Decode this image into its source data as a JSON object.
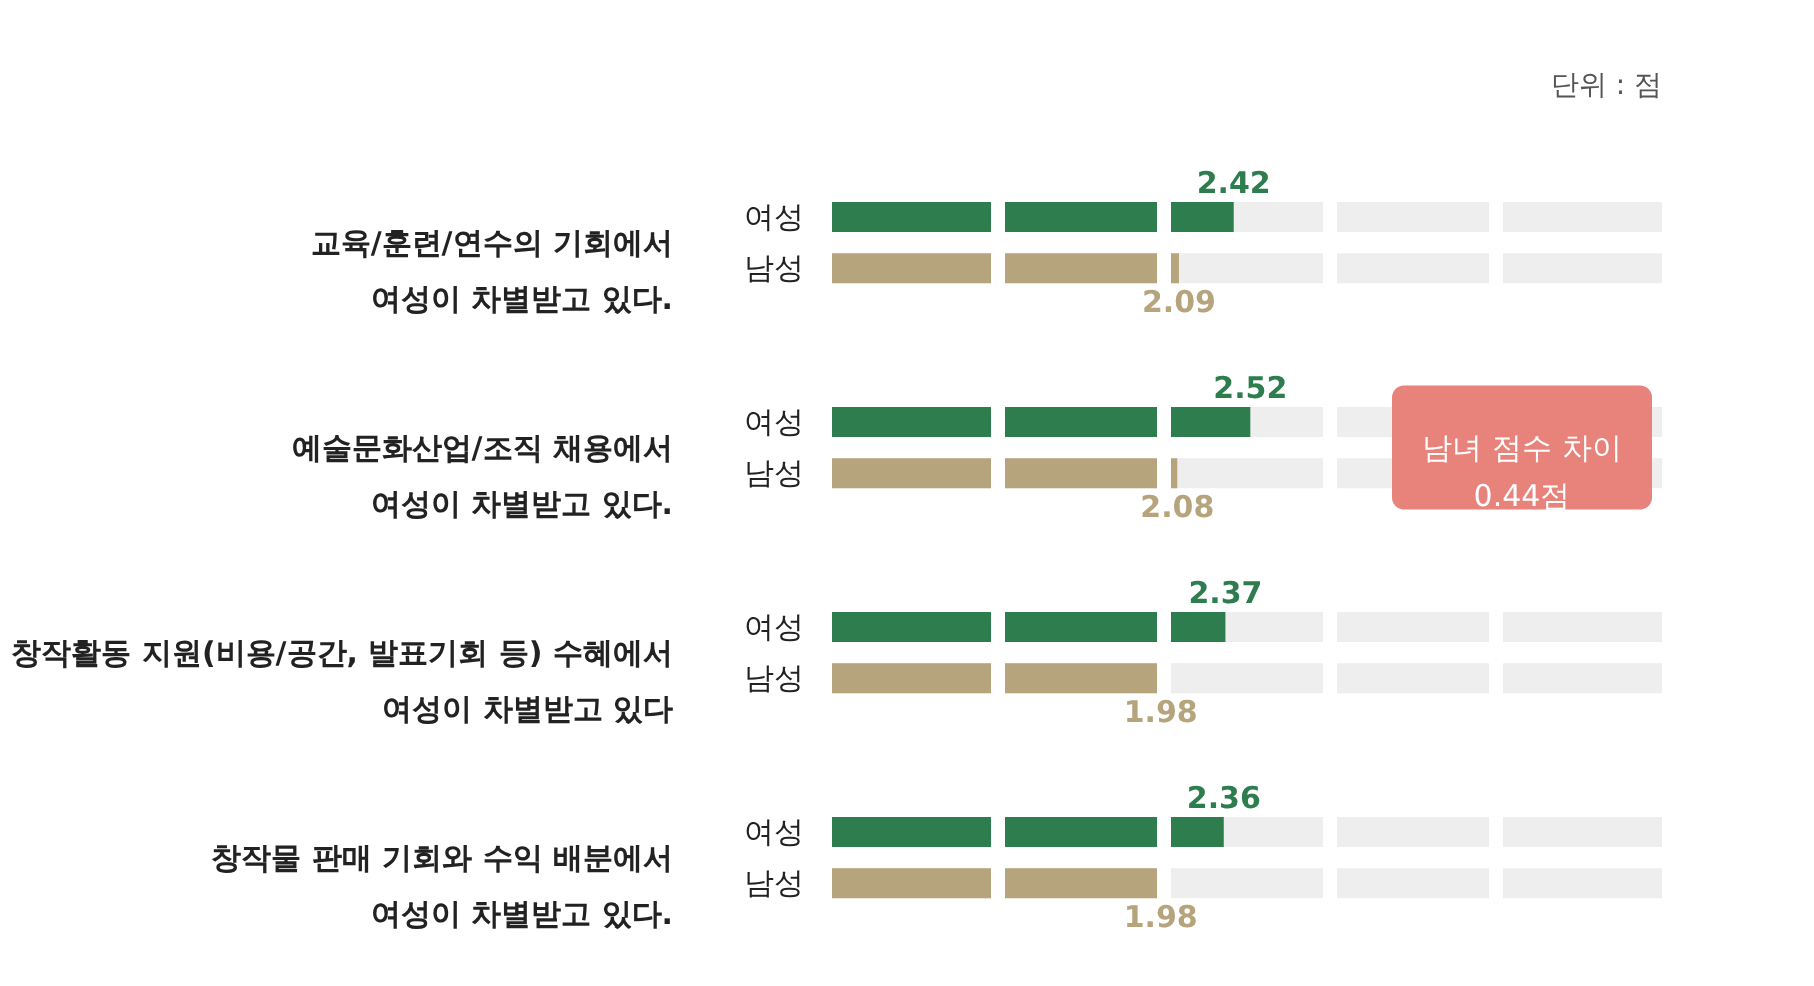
{
  "chart_data": {
    "type": "bar",
    "orientation": "horizontal",
    "categories": [
      "교육/훈련/연수의 기회에서\n여성이 차별받고 있다.",
      "예술문화산업/조직 채용에서\n여성이 차별받고 있다.",
      "창작활동 지원(비용/공간, 발표기회 등) 수혜에서\n여성이 차별받고 있다",
      "창작물 판매 기회와 수익 배분에서\n여성이 차별받고 있다."
    ],
    "series": [
      {
        "name": "여성",
        "color": "#2e7d4f",
        "values": [
          2.42,
          2.52,
          2.37,
          2.36
        ]
      },
      {
        "name": "남성",
        "color": "#b5a47c",
        "values": [
          2.09,
          2.08,
          1.98,
          1.98
        ]
      }
    ],
    "xlim": [
      0,
      5
    ],
    "xticks": [
      {
        "value": 1,
        "label": null
      },
      {
        "value": 2,
        "label": null
      },
      {
        "value": 3,
        "label": null
      },
      {
        "value": 4,
        "label": null
      }
    ],
    "tick_labels": "y",
    "grid": "x",
    "data_labels": true,
    "annotations": [
      "단위 : 점",
      "남녀 점수 차이\n0.44점"
    ]
  }
}
